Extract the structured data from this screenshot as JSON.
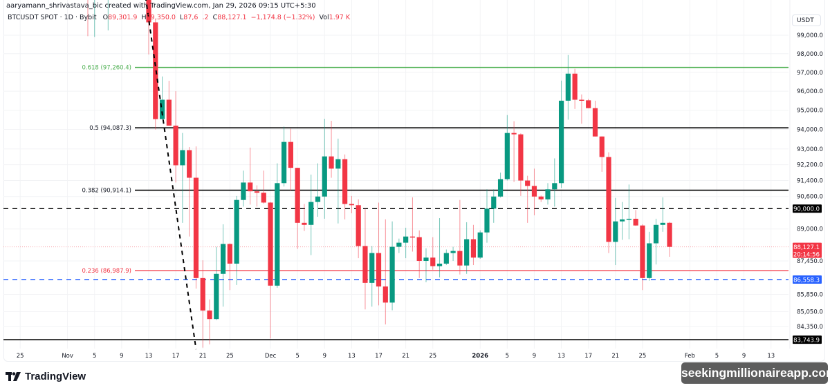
{
  "header": {
    "credit": "aaryamann_shrivastava_bic created with TradingView.com, Jan 29, 2026 09:15 UTC+5:30",
    "symbol": "BTCUSDT SPOT · 1D · Bybit",
    "o_label": "O",
    "open": "89,301.9",
    "h_label": "H",
    "high": "89,350.0",
    "l_label": "L",
    "low": "87,6  .2",
    "c_label": "C",
    "close": "88,127.1",
    "change": "−1,174.8 (−1.32%)",
    "vol_label": "Vol",
    "volume": "1.97 K"
  },
  "currency_label": "USDT",
  "brand": "TradingView",
  "watermark": "seekingmillionaireapp.com",
  "colors": {
    "up": "#089981",
    "down": "#f23645",
    "fib_618": "#4caf50",
    "fib_236": "#f23645",
    "level_blue": "#2962ff",
    "level_black": "#000000"
  },
  "chart_data": {
    "type": "candlestick",
    "y_scale": "log",
    "ylim": [
      83300,
      101500
    ],
    "grid": true,
    "x_ticks": [
      {
        "date": "2025-10-25",
        "label": "25"
      },
      {
        "date": "2025-11-01",
        "label": "Nov"
      },
      {
        "date": "2025-11-05",
        "label": "5"
      },
      {
        "date": "2025-11-09",
        "label": "9"
      },
      {
        "date": "2025-11-13",
        "label": "13"
      },
      {
        "date": "2025-11-17",
        "label": "17"
      },
      {
        "date": "2025-11-21",
        "label": "21"
      },
      {
        "date": "2025-11-25",
        "label": "25"
      },
      {
        "date": "2025-12-01",
        "label": "Dec"
      },
      {
        "date": "2025-12-05",
        "label": "5"
      },
      {
        "date": "2025-12-09",
        "label": "9"
      },
      {
        "date": "2025-12-13",
        "label": "13"
      },
      {
        "date": "2025-12-17",
        "label": "17"
      },
      {
        "date": "2025-12-21",
        "label": "21"
      },
      {
        "date": "2025-12-25",
        "label": "25"
      },
      {
        "date": "2026-01-01",
        "label": "2026"
      },
      {
        "date": "2026-01-05",
        "label": "5"
      },
      {
        "date": "2026-01-09",
        "label": "9"
      },
      {
        "date": "2026-01-13",
        "label": "13"
      },
      {
        "date": "2026-01-17",
        "label": "17"
      },
      {
        "date": "2026-01-21",
        "label": "21"
      },
      {
        "date": "2026-01-25",
        "label": "25"
      },
      {
        "date": "2026-02-01",
        "label": "Feb"
      },
      {
        "date": "2026-02-05",
        "label": "5"
      },
      {
        "date": "2026-02-09",
        "label": "9"
      },
      {
        "date": "2026-02-13",
        "label": "13"
      }
    ],
    "y_ticks": [
      {
        "value": 99000,
        "label": "99,000.0"
      },
      {
        "value": 98000,
        "label": "98,000.0"
      },
      {
        "value": 97000,
        "label": "97,000.0"
      },
      {
        "value": 96000,
        "label": "96,000.0"
      },
      {
        "value": 95000,
        "label": "95,000.0"
      },
      {
        "value": 94000,
        "label": "94,000.0"
      },
      {
        "value": 93000,
        "label": "93,000.0"
      },
      {
        "value": 92200,
        "label": "92,200.0"
      },
      {
        "value": 91400,
        "label": "91,400.0"
      },
      {
        "value": 90600,
        "label": "90,600.0"
      },
      {
        "value": 89000,
        "label": "89,000.0"
      },
      {
        "value": 87450,
        "label": "87,450.0"
      },
      {
        "value": 85850,
        "label": "85,850.0"
      },
      {
        "value": 85050,
        "label": "85,050.0"
      },
      {
        "value": 84350,
        "label": "84,350.0"
      }
    ],
    "fib_levels": [
      {
        "ratio": "0.618",
        "value": 97260.4,
        "label": "0.618 (97,260.4)",
        "color": "#4caf50"
      },
      {
        "ratio": "0.5",
        "value": 94087.3,
        "label": "0.5 (94,087.3)",
        "color": "#000000"
      },
      {
        "ratio": "0.382",
        "value": 90914.1,
        "label": "0.382 (90,914.1)",
        "color": "#000000"
      },
      {
        "ratio": "0.236",
        "value": 86987.9,
        "label": "0.236 (86,987.9)",
        "color": "#f23645"
      },
      {
        "ratio": "0",
        "value": 83743.9,
        "label": "",
        "color": "#000000"
      }
    ],
    "price_labels": [
      {
        "value": 90000.0,
        "label": "90,000.0",
        "style": "dashed",
        "color": "#000000"
      },
      {
        "value": 86558.3,
        "label": "86,558.3",
        "style": "dashed",
        "color": "#2962ff"
      },
      {
        "value": 83743.9,
        "label": "83,743.9",
        "style": "solid",
        "color": "#000000"
      },
      {
        "value": 88127.1,
        "label": "88,127.1",
        "countdown": "20:14:56",
        "style": "dotted",
        "color": "#f23645"
      }
    ],
    "trendline": [
      {
        "date": "2025-11-12",
        "value": 102500
      },
      {
        "date": "2025-11-20",
        "value": 83300
      }
    ],
    "candles": [
      [
        "2025-11-04",
        104500,
        106000,
        98950,
        101500
      ],
      [
        "2025-11-05",
        101500,
        104000,
        98900,
        103900
      ],
      [
        "2025-11-07",
        101300,
        104000,
        99260,
        103300
      ],
      [
        "2025-11-13",
        101300,
        101900,
        97960,
        99700
      ],
      [
        "2025-11-14",
        99700,
        99850,
        94000,
        94540
      ],
      [
        "2025-11-15",
        94540,
        96780,
        94500,
        95550
      ],
      [
        "2025-11-16",
        95550,
        96550,
        94200,
        94200
      ],
      [
        "2025-11-17",
        94200,
        96000,
        91300,
        92170
      ],
      [
        "2025-11-18",
        92170,
        93820,
        89300,
        92940
      ],
      [
        "2025-11-19",
        92940,
        93100,
        88630,
        91540
      ],
      [
        "2025-11-20",
        91540,
        93130,
        86130,
        86630
      ],
      [
        "2025-11-21",
        86630,
        87480,
        83380,
        85100
      ],
      [
        "2025-11-22",
        85100,
        85620,
        83530,
        84700
      ],
      [
        "2025-11-23",
        84700,
        88130,
        84650,
        86830
      ],
      [
        "2025-11-24",
        86830,
        89230,
        85280,
        88270
      ],
      [
        "2025-11-25",
        88270,
        88300,
        86060,
        87320
      ],
      [
        "2025-11-26",
        87320,
        90630,
        86300,
        90430
      ],
      [
        "2025-11-27",
        90430,
        91900,
        90100,
        91300
      ],
      [
        "2025-11-28",
        91300,
        93070,
        90200,
        90860
      ],
      [
        "2025-11-29",
        90860,
        91160,
        90100,
        90790
      ],
      [
        "2025-11-30",
        90790,
        91900,
        90250,
        90300
      ],
      [
        "2025-12-01",
        90300,
        90330,
        83800,
        86270
      ],
      [
        "2025-12-02",
        86270,
        92270,
        86170,
        91270
      ],
      [
        "2025-12-03",
        91270,
        94150,
        91100,
        93360
      ],
      [
        "2025-12-04",
        93360,
        94040,
        90890,
        92040
      ],
      [
        "2025-12-05",
        92040,
        92040,
        88030,
        89300
      ],
      [
        "2025-12-06",
        89300,
        90230,
        88900,
        89200
      ],
      [
        "2025-12-07",
        89200,
        91700,
        87730,
        90330
      ],
      [
        "2025-12-08",
        90330,
        92270,
        89600,
        90600
      ],
      [
        "2025-12-09",
        90600,
        94560,
        89500,
        92620
      ],
      [
        "2025-12-10",
        92620,
        94450,
        91540,
        92000
      ],
      [
        "2025-12-11",
        92000,
        93530,
        89270,
        92480
      ],
      [
        "2025-12-12",
        92480,
        92720,
        89470,
        90230
      ],
      [
        "2025-12-13",
        90230,
        90630,
        89770,
        90170
      ],
      [
        "2025-12-14",
        90170,
        90460,
        87580,
        88170
      ],
      [
        "2025-12-15",
        88170,
        90000,
        85150,
        86400
      ],
      [
        "2025-12-16",
        86400,
        88170,
        85280,
        87830
      ],
      [
        "2025-12-17",
        87830,
        90300,
        85340,
        86230
      ],
      [
        "2025-12-18",
        86230,
        89470,
        84450,
        85470
      ],
      [
        "2025-12-19",
        85470,
        89370,
        85110,
        88130
      ],
      [
        "2025-12-20",
        88130,
        88530,
        87830,
        88330
      ],
      [
        "2025-12-21",
        88330,
        89060,
        87580,
        88630
      ],
      [
        "2025-12-22",
        88630,
        90560,
        87900,
        88600
      ],
      [
        "2025-12-23",
        88600,
        88930,
        86630,
        87450
      ],
      [
        "2025-12-24",
        87450,
        88060,
        86430,
        87610
      ],
      [
        "2025-12-25",
        87610,
        88600,
        87030,
        87200
      ],
      [
        "2025-12-26",
        87200,
        89530,
        86660,
        87320
      ],
      [
        "2025-12-27",
        87320,
        88000,
        87250,
        87830
      ],
      [
        "2025-12-28",
        87830,
        88130,
        87450,
        87930
      ],
      [
        "2025-12-29",
        87930,
        90430,
        86800,
        87230
      ],
      [
        "2025-12-30",
        87230,
        89330,
        86830,
        88500
      ],
      [
        "2025-12-31",
        88500,
        89200,
        87250,
        87610
      ],
      [
        "2026-01-01",
        87610,
        88930,
        87550,
        88830
      ],
      [
        "2026-01-02",
        88830,
        90960,
        88330,
        90000
      ],
      [
        "2026-01-03",
        90000,
        90960,
        89300,
        90600
      ],
      [
        "2026-01-04",
        90600,
        91800,
        90550,
        91470
      ],
      [
        "2026-01-05",
        91470,
        94750,
        91400,
        93820
      ],
      [
        "2026-01-06",
        93820,
        94430,
        91330,
        93750
      ],
      [
        "2026-01-07",
        93750,
        93800,
        90630,
        91400
      ],
      [
        "2026-01-08",
        91400,
        91640,
        89300,
        91130
      ],
      [
        "2026-01-09",
        91130,
        92000,
        89670,
        90600
      ],
      [
        "2026-01-10",
        90600,
        90650,
        90330,
        90460
      ],
      [
        "2026-01-11",
        90460,
        91270,
        90200,
        90960
      ],
      [
        "2026-01-12",
        90960,
        92520,
        90100,
        91270
      ],
      [
        "2026-01-13",
        91270,
        96560,
        91030,
        95500
      ],
      [
        "2026-01-14",
        95500,
        97930,
        94510,
        96930
      ],
      [
        "2026-01-15",
        96930,
        97190,
        95070,
        95550
      ],
      [
        "2026-01-16",
        95550,
        95830,
        94300,
        95520
      ],
      [
        "2026-01-17",
        95520,
        95600,
        95100,
        95110
      ],
      [
        "2026-01-18",
        95110,
        95500,
        93640,
        93640
      ],
      [
        "2026-01-19",
        93640,
        93650,
        91840,
        92590
      ],
      [
        "2026-01-20",
        92590,
        92830,
        87830,
        88370
      ],
      [
        "2026-01-21",
        88370,
        90530,
        87250,
        89370
      ],
      [
        "2026-01-22",
        89370,
        90330,
        88470,
        89470
      ],
      [
        "2026-01-23",
        89470,
        91200,
        88500,
        89500
      ],
      [
        "2026-01-24",
        89500,
        89930,
        89150,
        89170
      ],
      [
        "2026-01-25",
        89170,
        89230,
        86060,
        86630
      ],
      [
        "2026-01-26",
        86630,
        88860,
        86500,
        88300
      ],
      [
        "2026-01-27",
        88300,
        89500,
        87280,
        89200
      ],
      [
        "2026-01-28",
        89200,
        90560,
        88860,
        89300
      ],
      [
        "2026-01-29",
        89301.9,
        89350.0,
        87650,
        88127.1
      ]
    ]
  }
}
